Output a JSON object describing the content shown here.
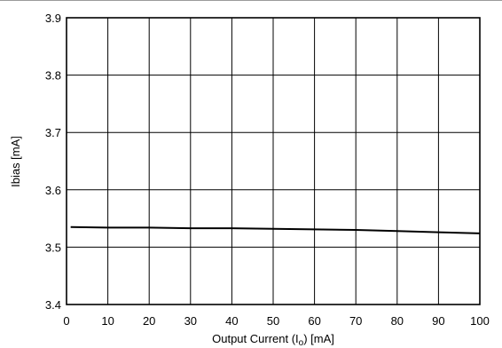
{
  "chart_data": {
    "type": "line",
    "title": "",
    "xlabel": {
      "prefix": "Output Current (I",
      "sub": "o",
      "suffix": ") [mA]"
    },
    "ylabel": "Ibias [mA]",
    "xlim": [
      0,
      100
    ],
    "ylim": [
      3.4,
      3.9
    ],
    "xticks": [
      0,
      10,
      20,
      30,
      40,
      50,
      60,
      70,
      80,
      90,
      100
    ],
    "yticks": [
      3.4,
      3.5,
      3.6,
      3.7,
      3.8,
      3.9
    ],
    "ytick_labels": [
      "3.4",
      "3.5",
      "3.6",
      "3.7",
      "3.8",
      "3.9"
    ],
    "grid": true,
    "series": [
      {
        "x": [
          1,
          10,
          20,
          30,
          40,
          50,
          60,
          70,
          80,
          90,
          100
        ],
        "y": [
          3.535,
          3.534,
          3.534,
          3.533,
          3.533,
          3.532,
          3.531,
          3.53,
          3.528,
          3.526,
          3.524
        ]
      }
    ]
  }
}
